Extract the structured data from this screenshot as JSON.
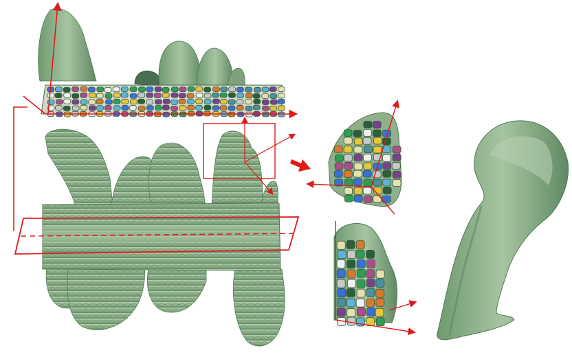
{
  "figure": {
    "tissue_color": "#8fb08b",
    "tissue_shade": "#5f8a63",
    "tissue_highlight": "#bcd3b6",
    "annotation_color": "#e01a1a",
    "cell_palette": [
      "#e8c53a",
      "#3a6fd8",
      "#2e9e55",
      "#c9c9c9",
      "#7a3f8f",
      "#d87a2c",
      "#5fb3d6",
      "#2b5e3a",
      "#e6e0b0",
      "#b04a8a",
      "#4c8f9e",
      "#f0f0f0"
    ]
  },
  "panels": [
    {
      "id": "cross-section-top",
      "content": "segmented-cells-with-surface"
    },
    {
      "id": "main-3d-surface",
      "content": "hypocotyl-with-root-hairs"
    },
    {
      "id": "cut-corner-cells",
      "content": "segmented-cells-corner-cut"
    },
    {
      "id": "half-cut-hair",
      "content": "segmented-cells-half-cut"
    },
    {
      "id": "single-root-hair",
      "content": "isolated-root-hair-surface"
    }
  ]
}
